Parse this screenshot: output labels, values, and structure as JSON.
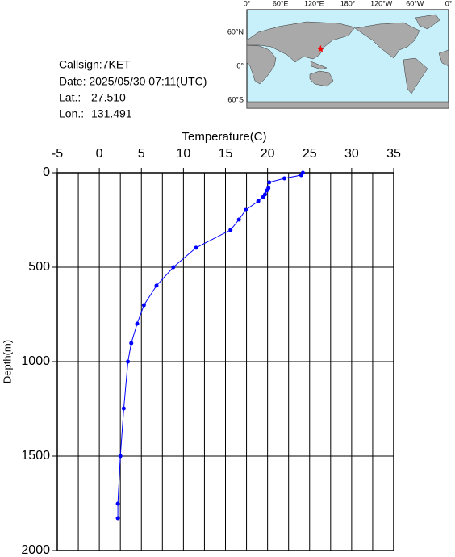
{
  "info": {
    "callsign": "Callsign:7KET",
    "date": "Date:  2025/05/30 07:11(UTC)",
    "lat_label": "Lat.:",
    "lat": "27.510",
    "lon_label": "Lon.:",
    "lon": "131.491"
  },
  "map": {
    "top_labels": [
      "0°",
      "60°E",
      "120°E",
      "180°",
      "120°W",
      "60°W",
      "0°"
    ],
    "left_labels": [
      "60°N",
      "0°",
      "60°S"
    ],
    "marker_color": "#ff0000"
  },
  "chart_data": {
    "type": "line",
    "title": "Temperature(C)",
    "y_label": "Depth(m)",
    "x": [
      24.2,
      24.0,
      22.0,
      20.2,
      20.1,
      19.9,
      19.7,
      19.5,
      18.9,
      17.4,
      16.6,
      15.6,
      11.5,
      8.8,
      6.8,
      5.3,
      4.5,
      3.8,
      3.4,
      2.9,
      2.5,
      2.2,
      2.2
    ],
    "values": [
      0,
      13,
      30,
      51,
      81,
      94,
      115,
      128,
      150,
      197,
      248,
      303,
      397,
      500,
      598,
      701,
      799,
      902,
      1000,
      1248,
      1500,
      1752,
      1829
    ],
    "color": "#0000ff",
    "xlim": [
      -5,
      35
    ],
    "xticks": [
      -5,
      0,
      5,
      10,
      15,
      20,
      25,
      30,
      35
    ],
    "ylim": [
      0,
      2000
    ],
    "yticks": [
      0,
      500,
      1000,
      1500,
      2000
    ],
    "y_reversed": true,
    "x_axis_position": "top",
    "grid": true
  }
}
